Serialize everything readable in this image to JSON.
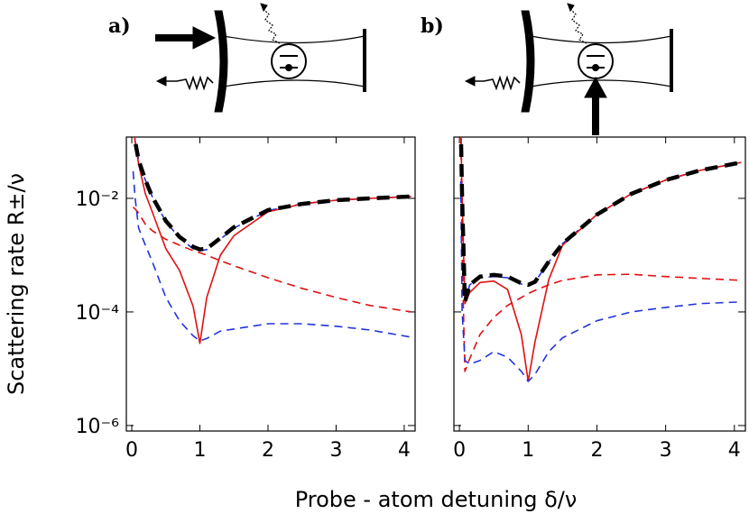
{
  "chart_data": [
    {
      "type": "line",
      "panel_label": "a)",
      "ylabel": "Scattering rate R±/ν",
      "xlabel": "Probe - atom detuning δ/ν",
      "log_y": true,
      "xlim": [
        -0.08,
        4.16
      ],
      "ylim": [
        8e-07,
        0.12
      ],
      "xticks": [
        0,
        1,
        2,
        3,
        4
      ],
      "yticks": [
        {
          "value": 1e-06,
          "label": "10⁻⁶"
        },
        {
          "value": 0.0001,
          "label": "10⁻⁴"
        },
        {
          "value": 0.01,
          "label": "10⁻²"
        }
      ],
      "x": [
        0.02,
        0.05,
        0.1,
        0.2,
        0.3,
        0.5,
        0.7,
        0.9,
        1.0,
        1.1,
        1.3,
        1.5,
        2,
        2.5,
        3,
        3.5,
        4.1
      ],
      "series": [
        {
          "color": "#2233dd",
          "style": "dashed",
          "values": [
            0.2,
            0.1,
            0.047,
            0.021,
            0.0107,
            0.0039,
            0.002,
            0.0013,
            0.0012,
            0.00125,
            0.0019,
            0.003,
            0.0061,
            0.008,
            0.0093,
            0.01,
            0.0108
          ]
        },
        {
          "color": "#e01010",
          "style": "solid",
          "values": [
            0.2,
            0.1,
            0.04,
            0.012,
            0.0058,
            0.0013,
            0.00054,
            0.000126,
            2.8e-05,
            0.00018,
            0.001,
            0.0022,
            0.0058,
            0.008,
            0.0093,
            0.01,
            0.0108
          ]
        },
        {
          "color": "#e01010",
          "style": "dashed",
          "values": [
            0.007,
            0.0065,
            0.0055,
            0.0035,
            0.0027,
            0.0019,
            0.0015,
            0.0012,
            0.0011,
            0.001,
            0.0008,
            0.00065,
            0.0004,
            0.00026,
            0.00018,
            0.00013,
            0.0001
          ]
        },
        {
          "color": "#2233dd",
          "style": "dashed",
          "values": [
            0.03,
            0.01,
            0.003,
            0.0015,
            0.00077,
            0.00018,
            7e-05,
            3.8e-05,
            3.1e-05,
            3.4e-05,
            4.6e-05,
            5e-05,
            6.2e-05,
            6.2e-05,
            5.6e-05,
            4.8e-05,
            3.6e-05
          ]
        },
        {
          "color": "#000000",
          "style": "thick-dashed",
          "values": [
            0.2,
            0.1,
            0.047,
            0.021,
            0.0107,
            0.004,
            0.0021,
            0.0014,
            0.00126,
            0.0013,
            0.002,
            0.0031,
            0.0062,
            0.008,
            0.0093,
            0.01,
            0.0108
          ]
        }
      ]
    },
    {
      "type": "line",
      "panel_label": "b)",
      "log_y": true,
      "xlim": [
        -0.08,
        4.16
      ],
      "ylim": [
        8e-07,
        0.12
      ],
      "xticks": [
        0,
        1,
        2,
        3,
        4
      ],
      "x": [
        0.02,
        0.04,
        0.08,
        0.15,
        0.3,
        0.5,
        0.7,
        0.9,
        1.0,
        1.1,
        1.3,
        1.5,
        2,
        2.5,
        3,
        3.5,
        4.1
      ],
      "series": [
        {
          "color": "#2233dd",
          "style": "dashed",
          "values": [
            0.2,
            0.01,
            0.00015,
            0.0003,
            0.0004,
            0.00042,
            0.0004,
            0.00031,
            0.0003,
            0.00034,
            0.00076,
            0.0016,
            0.0052,
            0.012,
            0.021,
            0.031,
            0.043
          ]
        },
        {
          "color": "#e01010",
          "style": "solid",
          "values": [
            0.2,
            0.01,
            0.00014,
            0.00022,
            0.00033,
            0.00035,
            0.00025,
            4e-05,
            6e-06,
            3e-05,
            0.00037,
            0.0015,
            0.0052,
            0.012,
            0.021,
            0.031,
            0.043
          ]
        },
        {
          "color": "#e01010",
          "style": "dashed",
          "values": [
            0.2,
            0.001,
            9e-06,
            1.5e-05,
            4e-05,
            8e-05,
            0.00013,
            0.00018,
            0.00021,
            0.00024,
            0.0003,
            0.00036,
            0.00045,
            0.00046,
            0.00042,
            0.00039,
            0.00036
          ]
        },
        {
          "color": "#2233dd",
          "style": "dashed",
          "values": [
            0.02,
            0.0001,
            1.4e-05,
            1.2e-05,
            1.4e-05,
            2e-05,
            1.6e-05,
            9e-06,
            6e-06,
            8e-06,
            2e-05,
            3.5e-05,
            7e-05,
            0.0001,
            0.00012,
            0.00014,
            0.00015
          ]
        },
        {
          "color": "#000000",
          "style": "thick-dashed",
          "values": [
            0.2,
            0.01,
            0.00015,
            0.0003,
            0.00042,
            0.00045,
            0.00042,
            0.00032,
            0.0003,
            0.00034,
            0.00077,
            0.0016,
            0.0052,
            0.012,
            0.021,
            0.031,
            0.043
          ]
        }
      ]
    }
  ]
}
